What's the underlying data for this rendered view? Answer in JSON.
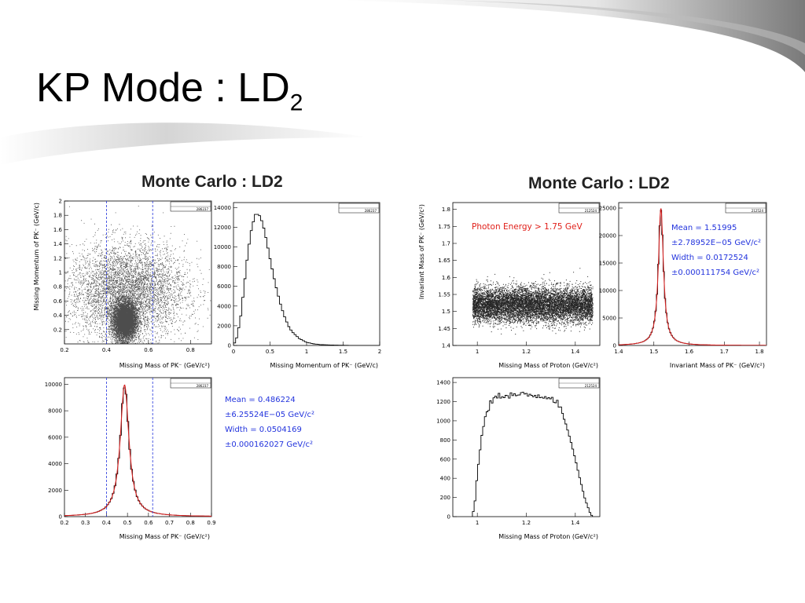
{
  "slide": {
    "title_main": "KP Mode : LD",
    "title_sub": "2"
  },
  "sections": [
    {
      "title": "Monte Carlo : LD2"
    },
    {
      "title": "Monte Carlo : LD2"
    }
  ],
  "fits": [
    {
      "mean": "Mean = 0.486224",
      "mean_err": "±6.25524E−05 GeV/c²",
      "width": "Width = 0.0504169",
      "width_err": "±0.000162027 GeV/c²"
    },
    {
      "mean": "Mean = 1.51995",
      "mean_err": "±2.78952E−05 GeV/c²",
      "width": "Width = 0.0172524",
      "width_err": "±0.000111754 GeV/c²"
    }
  ],
  "annotation": "Photon Energy > 1.75 GeV",
  "colors": {
    "fit": "#d42020",
    "cut": "#2233dd",
    "fit_text": "#2233dd",
    "annot": "#e0201a"
  },
  "chart_data": [
    {
      "id": "p1",
      "type": "scatter",
      "title": "",
      "xlabel": "Missing Mass of PK⁻ (GeV/c²)",
      "ylabel": "Missing Momentum of PK⁻ (GeV/c)",
      "xlim": [
        0.2,
        0.9
      ],
      "ylim": [
        0,
        2
      ],
      "xticks": [
        0.2,
        0.4,
        0.6,
        0.8
      ],
      "yticks": [
        0.2,
        0.4,
        0.6,
        0.8,
        1,
        1.2,
        1.4,
        1.6,
        1.8,
        2
      ],
      "stats": {
        "entries": "286237"
      },
      "cuts": [
        0.4,
        0.62
      ],
      "clusters": [
        {
          "cx": 0.486,
          "cy": 0.33,
          "sx": 0.028,
          "sy": 0.13
        },
        {
          "cx": 0.5,
          "cy": 0.75,
          "sx": 0.14,
          "sy": 0.33
        }
      ]
    },
    {
      "id": "p2",
      "type": "line",
      "title": "",
      "xlabel": "Missing Momentum of PK⁻ (GeV/c)",
      "ylabel": "",
      "xlim": [
        0,
        2
      ],
      "ylim": [
        0,
        14500
      ],
      "xticks": [
        0,
        0.5,
        1,
        1.5,
        2
      ],
      "yticks": [
        0,
        2000,
        4000,
        6000,
        8000,
        10000,
        12000,
        14000
      ],
      "stats": {
        "entries": "286237"
      },
      "x": [
        0,
        0.05,
        0.1,
        0.15,
        0.2,
        0.25,
        0.3,
        0.35,
        0.4,
        0.45,
        0.5,
        0.55,
        0.6,
        0.65,
        0.7,
        0.75,
        0.8,
        0.9,
        1.0,
        1.1,
        1.2,
        1.4,
        1.6,
        2.0
      ],
      "y": [
        0,
        900,
        3000,
        6300,
        9600,
        12000,
        13300,
        13300,
        12400,
        10700,
        8800,
        7000,
        5400,
        4000,
        2900,
        2000,
        1400,
        700,
        320,
        160,
        80,
        30,
        10,
        0
      ]
    },
    {
      "id": "p3",
      "type": "line",
      "title": "",
      "xlabel": "Missing Mass of PK⁻ (GeV/c²)",
      "ylabel": "",
      "xlim": [
        0.2,
        0.9
      ],
      "ylim": [
        0,
        10500
      ],
      "xticks": [
        0.2,
        0.3,
        0.4,
        0.5,
        0.6,
        0.7,
        0.8,
        0.9
      ],
      "yticks": [
        0,
        2000,
        4000,
        6000,
        8000,
        10000
      ],
      "stats": {
        "entries": "286237"
      },
      "cuts": [
        0.4,
        0.62
      ],
      "peak": {
        "mean": 0.486224,
        "width": 0.0504169,
        "amplitude": 9950
      }
    },
    {
      "id": "p4",
      "type": "scatter",
      "title": "",
      "xlabel": "Missing Mass of Proton (GeV/c²)",
      "ylabel": "Invariant Mass of PK⁻ (GeV/c²)",
      "xlim": [
        0.9,
        1.5
      ],
      "ylim": [
        1.4,
        1.82
      ],
      "xticks": [
        1,
        1.2,
        1.4
      ],
      "yticks": [
        1.4,
        1.45,
        1.5,
        1.55,
        1.6,
        1.65,
        1.7,
        1.75,
        1.8
      ],
      "stats": {
        "entries": "212524"
      },
      "band": {
        "xmin": 0.98,
        "xmax": 1.47,
        "center": 1.52,
        "halfwidth": 0.06
      }
    },
    {
      "id": "p5",
      "type": "line",
      "title": "",
      "xlabel": "Invariant Mass of PK⁻ (GeV/c²)",
      "ylabel": "",
      "xlim": [
        1.4,
        1.82
      ],
      "ylim": [
        0,
        26000
      ],
      "xticks": [
        1.4,
        1.5,
        1.6,
        1.7,
        1.8
      ],
      "yticks": [
        0,
        5000,
        10000,
        15000,
        20000,
        25000
      ],
      "stats": {
        "entries": "212524"
      },
      "peak": {
        "mean": 1.51995,
        "width": 0.0172524,
        "amplitude": 25000
      }
    },
    {
      "id": "p6",
      "type": "line",
      "title": "",
      "xlabel": "Missing Mass of Proton (GeV/c²)",
      "ylabel": "",
      "xlim": [
        0.9,
        1.5
      ],
      "ylim": [
        0,
        1450
      ],
      "xticks": [
        1,
        1.2,
        1.4
      ],
      "yticks": [
        0,
        200,
        400,
        600,
        800,
        1000,
        1200,
        1400
      ],
      "stats": {
        "entries": "212524"
      },
      "x": [
        0.98,
        0.99,
        1.0,
        1.02,
        1.04,
        1.06,
        1.08,
        1.1,
        1.15,
        1.2,
        1.25,
        1.3,
        1.32,
        1.34,
        1.36,
        1.38,
        1.4,
        1.42,
        1.44,
        1.46,
        1.47
      ],
      "y": [
        0,
        150,
        450,
        880,
        1100,
        1210,
        1250,
        1265,
        1270,
        1268,
        1265,
        1250,
        1210,
        1120,
        980,
        800,
        600,
        380,
        180,
        40,
        0
      ]
    }
  ]
}
